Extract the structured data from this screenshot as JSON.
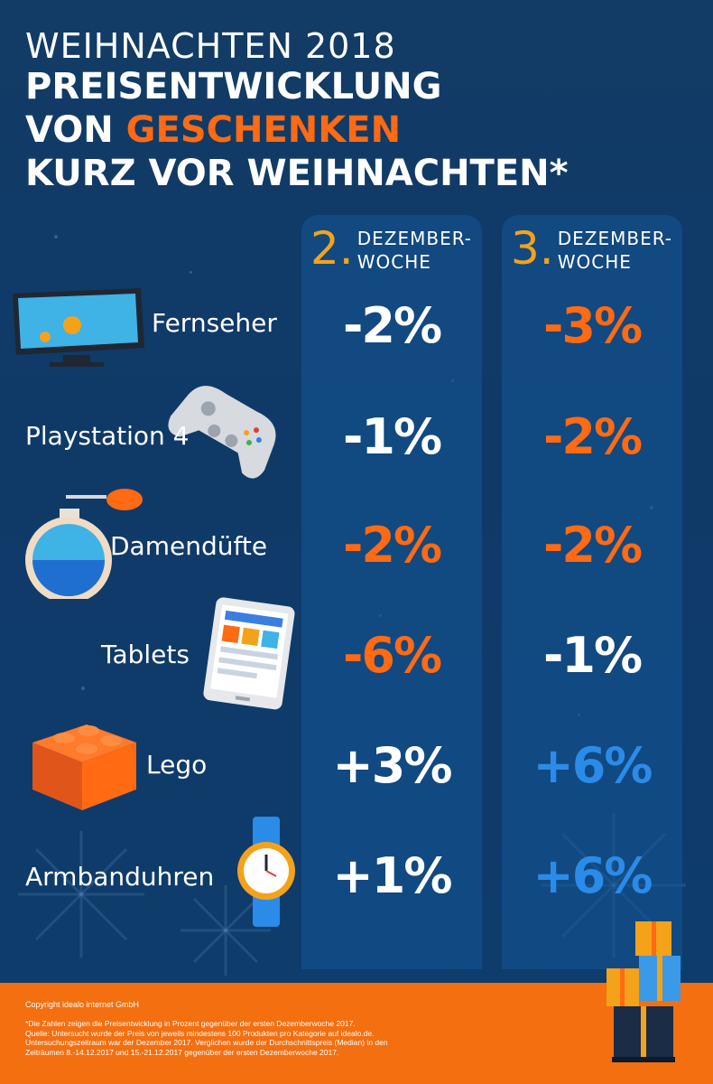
{
  "header": {
    "year_line": "WEIHNACHTEN 2018",
    "line1": "PREISENTWICKLUNG",
    "line2_prefix": "VON ",
    "line2_accent": "GESCHENKEN",
    "line3": "KURZ VOR WEIHNACHTEN*"
  },
  "columns": [
    {
      "number": "2.",
      "label_line1": "DEZEMBER-",
      "label_line2": "WOCHE"
    },
    {
      "number": "3.",
      "label_line1": "DEZEMBER-",
      "label_line2": "WOCHE"
    }
  ],
  "rows": [
    {
      "label": "Fernseher",
      "icon": "tv-icon",
      "week2": "-2%",
      "week2_color": "#ffffff",
      "week3": "-3%",
      "week3_color": "#ff6a13"
    },
    {
      "label": "Playstation 4",
      "icon": "gamepad-icon",
      "week2": "-1%",
      "week2_color": "#ffffff",
      "week3": "-2%",
      "week3_color": "#ff6a13"
    },
    {
      "label": "Damendüfte",
      "icon": "perfume-icon",
      "week2": "-2%",
      "week2_color": "#ff6a13",
      "week3": "-2%",
      "week3_color": "#ff6a13"
    },
    {
      "label": "Tablets",
      "icon": "tablet-icon",
      "week2": "-6%",
      "week2_color": "#ff6a13",
      "week3": "-1%",
      "week3_color": "#ffffff"
    },
    {
      "label": "Lego",
      "icon": "lego-brick-icon",
      "week2": "+3%",
      "week2_color": "#ffffff",
      "week3": "+6%",
      "week3_color": "#2b8be8"
    },
    {
      "label": "Armbanduhren",
      "icon": "wristwatch-icon",
      "week2": "+1%",
      "week2_color": "#ffffff",
      "week3": "+6%",
      "week3_color": "#2b8be8"
    }
  ],
  "footer": {
    "copyright": "Copyright idealo internet GmbH",
    "note_1": "*Die Zahlen zeigen die Preisentwicklung in Prozent gegenüber der ersten Dezemberwoche 2017.",
    "note_2": "Quelle: Untersucht wurde der Preis von jeweils mindestens 100 Produkten pro Kategorie auf idealo.de.",
    "note_3": "Untersuchungszeitraum war der Dezember 2017. Verglichen wurde der Durchschnittspreis (Median) in den",
    "note_4": "Zeiträumen 8.-14.12.2017 und 15.-21.12.2017 gegenüber der ersten Dezemberwoche 2017."
  },
  "colors": {
    "background": "#0f3a68",
    "accent_orange": "#ff6a13",
    "accent_gold": "#f5a21b",
    "accent_blue": "#2b8be8",
    "footer": "#f36f10"
  }
}
